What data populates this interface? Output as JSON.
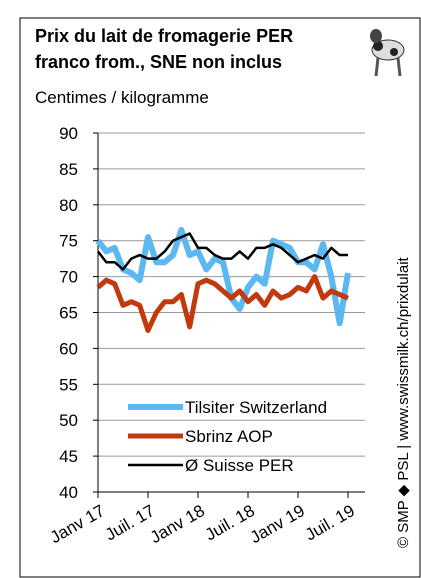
{
  "chart_data": {
    "type": "line",
    "title": [
      "Prix du lait de fromagerie PER",
      "franco from., SNE non inclus"
    ],
    "y_label": "Centimes / kilogramme",
    "source": "© SMP ◆ PSL  |  www.swissmilk.ch/prixdulait",
    "categories": [
      "Janv 17",
      null,
      null,
      null,
      null,
      null,
      "Juil. 17",
      null,
      null,
      null,
      null,
      null,
      "Janv 18",
      null,
      null,
      null,
      null,
      null,
      "Juil. 18",
      null,
      null,
      null,
      null,
      null,
      "Janv 19",
      null,
      null,
      null,
      null,
      null,
      "Juil. 19"
    ],
    "series": [
      {
        "name": "Tilsiter Switzerland",
        "color": "#5bb8f0",
        "values": [
          75,
          73.5,
          74,
          71,
          70.5,
          69.5,
          75.5,
          72,
          72,
          73,
          76.5,
          73,
          73.5,
          71,
          72.5,
          72,
          67,
          65.5,
          68.5,
          70,
          69,
          75,
          74.5,
          74,
          72,
          72,
          71,
          74.5,
          70,
          63.5,
          70.5
        ]
      },
      {
        "name": "Sbrinz AOP",
        "color": "#c1390c",
        "values": [
          68.5,
          69.5,
          69,
          66,
          66.5,
          66,
          62.5,
          65,
          66.5,
          66.5,
          67.5,
          63,
          69,
          69.5,
          69,
          68,
          67,
          68,
          66.5,
          67.5,
          66,
          68,
          67,
          67.5,
          68.5,
          68,
          70,
          67,
          68,
          67.5,
          67
        ]
      },
      {
        "name": "Ø Suisse PER",
        "color": "#000000",
        "values": [
          73.5,
          72,
          72,
          71,
          72.5,
          73,
          72.5,
          72.5,
          73.5,
          75,
          75.5,
          76,
          74,
          74,
          73,
          72.5,
          72.5,
          73.5,
          72.5,
          74,
          74,
          74.5,
          74,
          73,
          72,
          72.5,
          73,
          72.5,
          74,
          73,
          73
        ]
      }
    ],
    "ylim": [
      40,
      90
    ],
    "yticks": [
      40,
      45,
      50,
      55,
      60,
      65,
      70,
      75,
      80,
      85,
      90
    ],
    "grid": true,
    "legend": "lower left"
  }
}
